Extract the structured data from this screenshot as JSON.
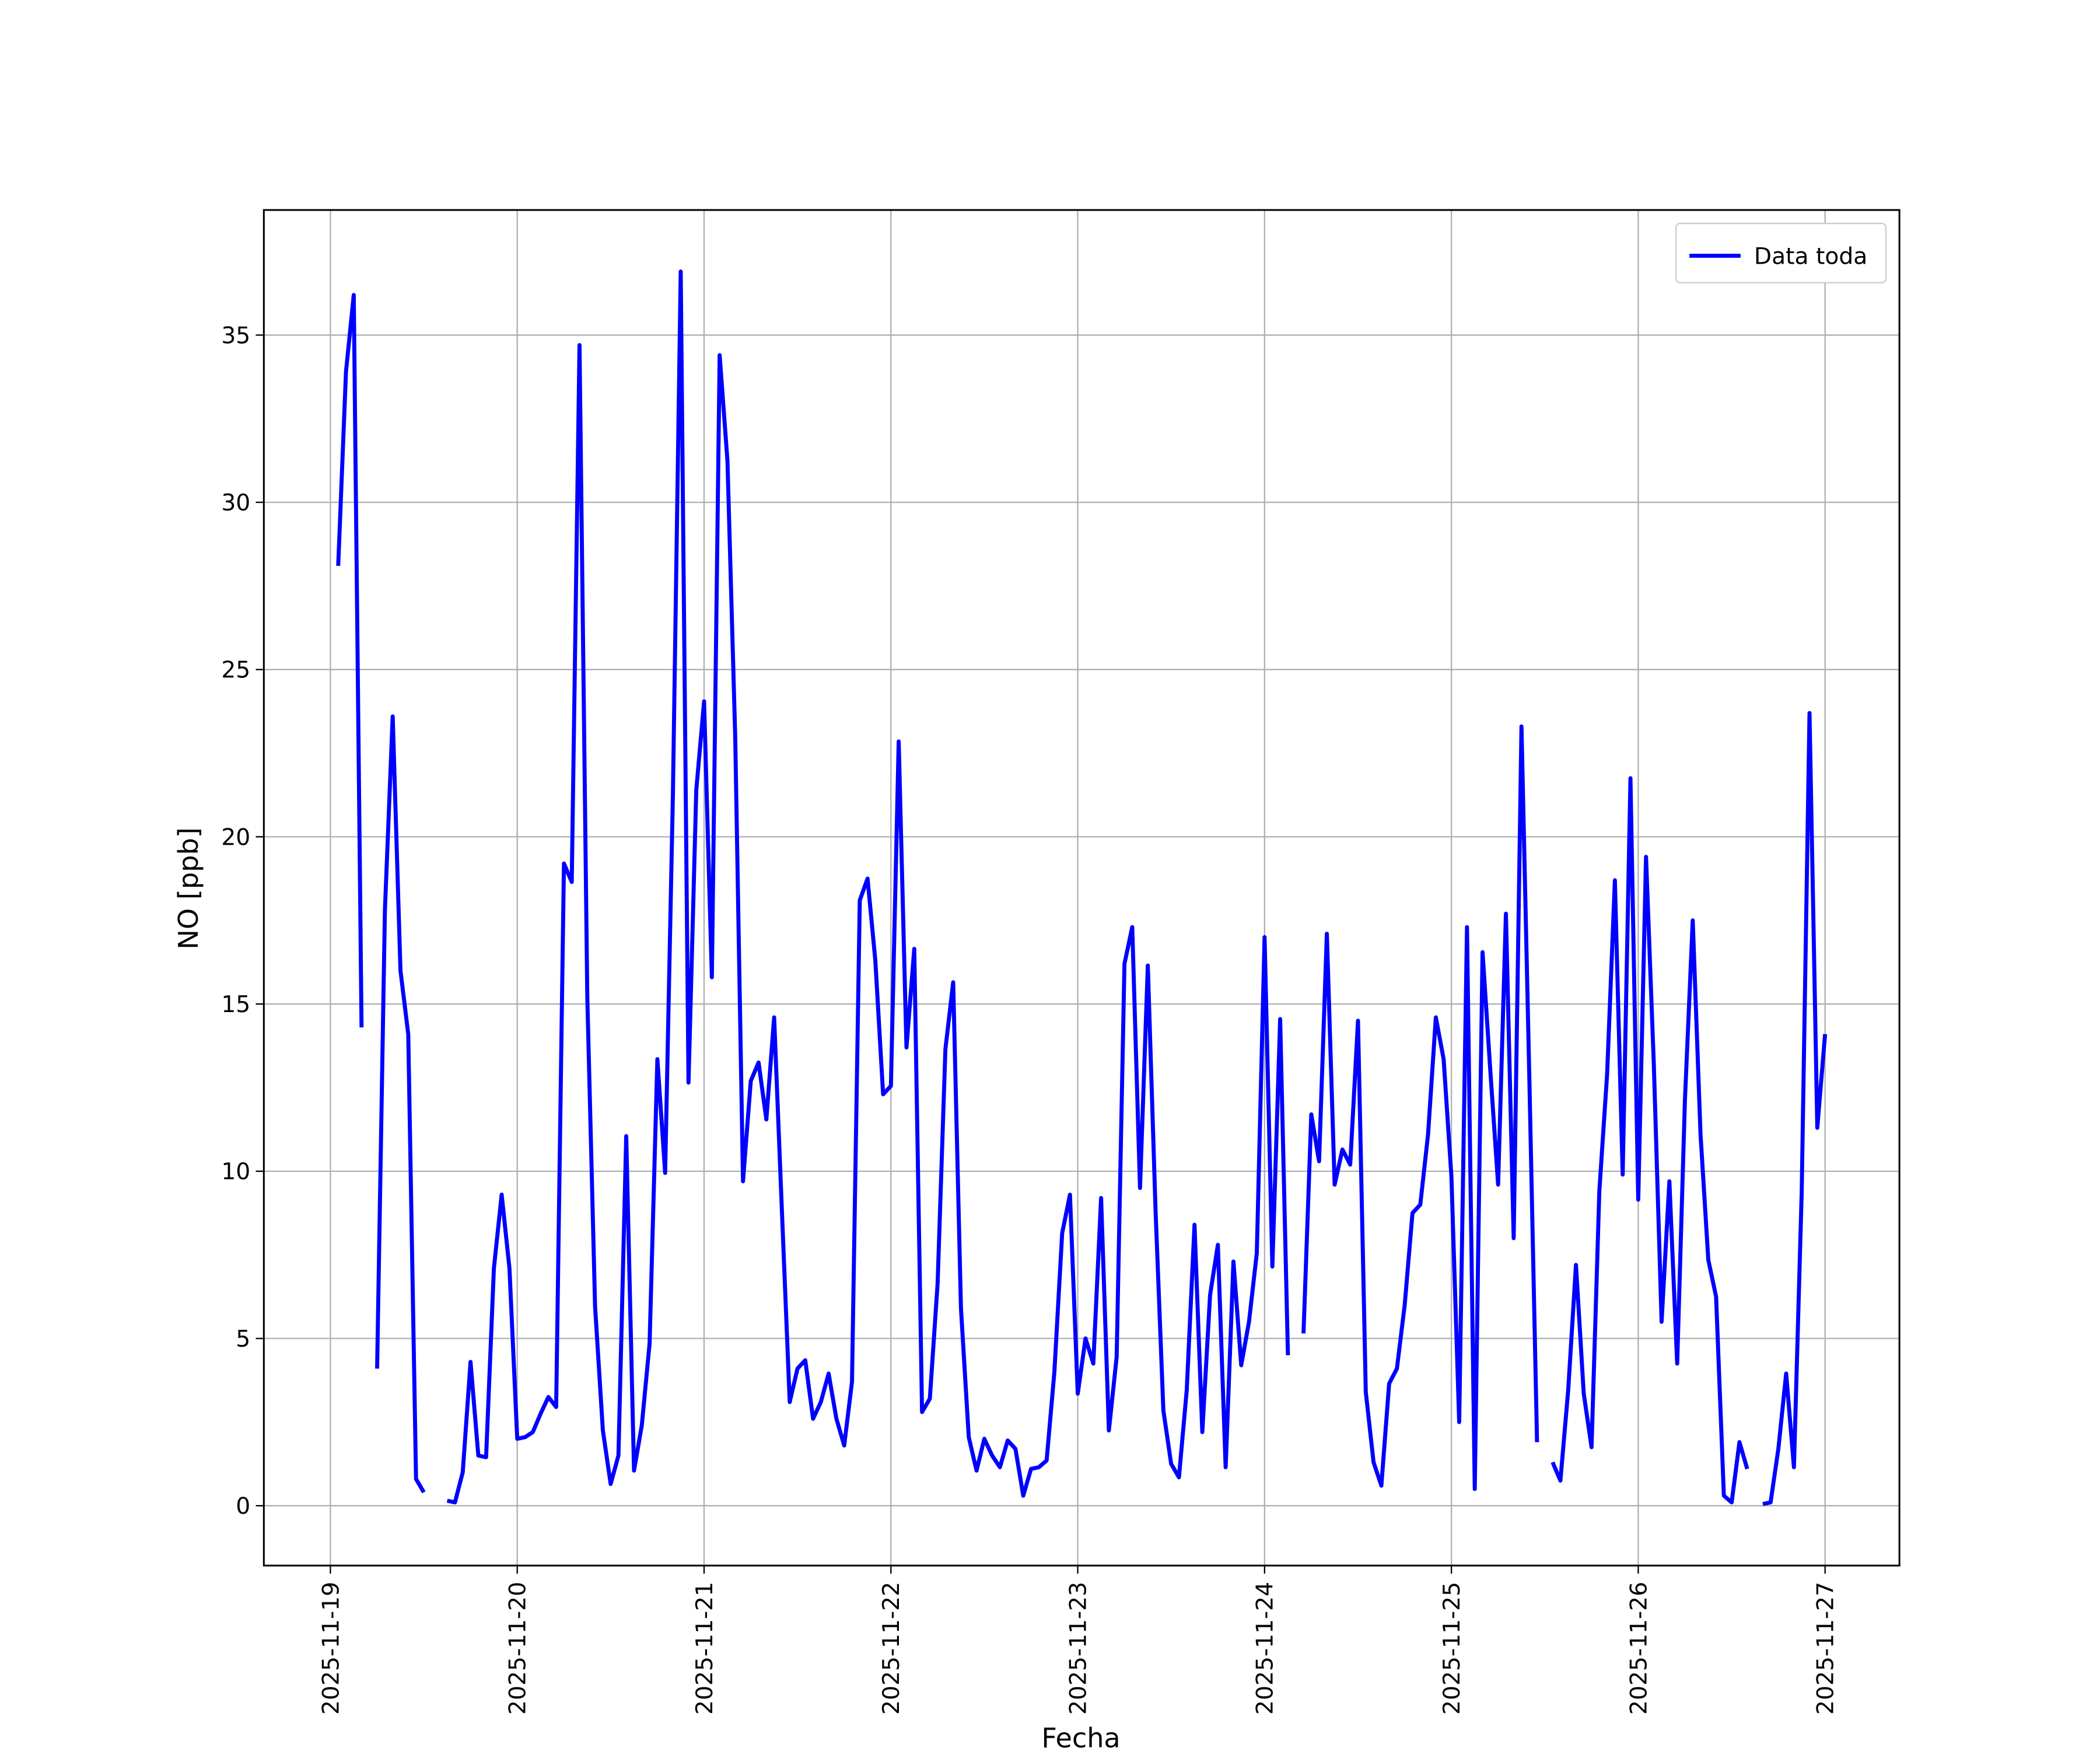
{
  "chart_data": {
    "type": "line",
    "xlabel": "Fecha",
    "ylabel": "NO [ppb]",
    "x": [
      "2025-11-19 01:00",
      "2025-11-19 02:00",
      "2025-11-19 03:00",
      "2025-11-19 04:00",
      "2025-11-19 05:00",
      "2025-11-19 06:00",
      "2025-11-19 07:00",
      "2025-11-19 08:00",
      "2025-11-19 09:00",
      "2025-11-19 10:00",
      "2025-11-19 11:00",
      "2025-11-19 12:00",
      "2025-11-19 13:00",
      "2025-11-19 14:00",
      "2025-11-19 15:00",
      "2025-11-19 16:00",
      "2025-11-19 17:00",
      "2025-11-19 18:00",
      "2025-11-19 19:00",
      "2025-11-19 20:00",
      "2025-11-19 21:00",
      "2025-11-19 22:00",
      "2025-11-19 23:00",
      "2025-11-20 00:00",
      "2025-11-20 01:00",
      "2025-11-20 02:00",
      "2025-11-20 03:00",
      "2025-11-20 04:00",
      "2025-11-20 05:00",
      "2025-11-20 06:00",
      "2025-11-20 07:00",
      "2025-11-20 08:00",
      "2025-11-20 09:00",
      "2025-11-20 10:00",
      "2025-11-20 11:00",
      "2025-11-20 12:00",
      "2025-11-20 13:00",
      "2025-11-20 14:00",
      "2025-11-20 15:00",
      "2025-11-20 16:00",
      "2025-11-20 17:00",
      "2025-11-20 18:00",
      "2025-11-20 19:00",
      "2025-11-20 20:00",
      "2025-11-20 21:00",
      "2025-11-20 22:00",
      "2025-11-20 23:00",
      "2025-11-21 00:00",
      "2025-11-21 01:00",
      "2025-11-21 02:00",
      "2025-11-21 03:00",
      "2025-11-21 04:00",
      "2025-11-21 05:00",
      "2025-11-21 06:00",
      "2025-11-21 07:00",
      "2025-11-21 08:00",
      "2025-11-21 09:00",
      "2025-11-21 10:00",
      "2025-11-21 11:00",
      "2025-11-21 12:00",
      "2025-11-21 13:00",
      "2025-11-21 14:00",
      "2025-11-21 15:00",
      "2025-11-21 16:00",
      "2025-11-21 17:00",
      "2025-11-21 18:00",
      "2025-11-21 19:00",
      "2025-11-21 20:00",
      "2025-11-21 21:00",
      "2025-11-21 22:00",
      "2025-11-21 23:00",
      "2025-11-22 00:00",
      "2025-11-22 01:00",
      "2025-11-22 02:00",
      "2025-11-22 03:00",
      "2025-11-22 04:00",
      "2025-11-22 05:00",
      "2025-11-22 06:00",
      "2025-11-22 07:00",
      "2025-11-22 08:00",
      "2025-11-22 09:00",
      "2025-11-22 10:00",
      "2025-11-22 11:00",
      "2025-11-22 12:00",
      "2025-11-22 13:00",
      "2025-11-22 14:00",
      "2025-11-22 15:00",
      "2025-11-22 16:00",
      "2025-11-22 17:00",
      "2025-11-22 18:00",
      "2025-11-22 19:00",
      "2025-11-22 20:00",
      "2025-11-22 21:00",
      "2025-11-22 22:00",
      "2025-11-22 23:00",
      "2025-11-23 00:00",
      "2025-11-23 01:00",
      "2025-11-23 02:00",
      "2025-11-23 03:00",
      "2025-11-23 04:00",
      "2025-11-23 05:00",
      "2025-11-23 06:00",
      "2025-11-23 07:00",
      "2025-11-23 08:00",
      "2025-11-23 09:00",
      "2025-11-23 10:00",
      "2025-11-23 11:00",
      "2025-11-23 12:00",
      "2025-11-23 13:00",
      "2025-11-23 14:00",
      "2025-11-23 15:00",
      "2025-11-23 16:00",
      "2025-11-23 17:00",
      "2025-11-23 18:00",
      "2025-11-23 19:00",
      "2025-11-23 20:00",
      "2025-11-23 21:00",
      "2025-11-23 22:00",
      "2025-11-23 23:00",
      "2025-11-24 00:00",
      "2025-11-24 01:00",
      "2025-11-24 02:00",
      "2025-11-24 03:00",
      "2025-11-24 04:00",
      "2025-11-24 05:00",
      "2025-11-24 06:00",
      "2025-11-24 07:00",
      "2025-11-24 08:00",
      "2025-11-24 09:00",
      "2025-11-24 10:00",
      "2025-11-24 11:00",
      "2025-11-24 12:00",
      "2025-11-24 13:00",
      "2025-11-24 14:00",
      "2025-11-24 15:00",
      "2025-11-24 16:00",
      "2025-11-24 17:00",
      "2025-11-24 18:00",
      "2025-11-24 19:00",
      "2025-11-24 20:00",
      "2025-11-24 21:00",
      "2025-11-24 22:00",
      "2025-11-24 23:00",
      "2025-11-25 00:00",
      "2025-11-25 01:00",
      "2025-11-25 02:00",
      "2025-11-25 03:00",
      "2025-11-25 04:00",
      "2025-11-25 05:00",
      "2025-11-25 06:00",
      "2025-11-25 07:00",
      "2025-11-25 08:00",
      "2025-11-25 09:00",
      "2025-11-25 10:00",
      "2025-11-25 11:00",
      "2025-11-25 12:00",
      "2025-11-25 13:00",
      "2025-11-25 14:00",
      "2025-11-25 15:00",
      "2025-11-25 16:00",
      "2025-11-25 17:00",
      "2025-11-25 18:00",
      "2025-11-25 19:00",
      "2025-11-25 20:00",
      "2025-11-25 21:00",
      "2025-11-25 22:00",
      "2025-11-25 23:00",
      "2025-11-26 00:00",
      "2025-11-26 01:00",
      "2025-11-26 02:00",
      "2025-11-26 03:00",
      "2025-11-26 04:00",
      "2025-11-26 05:00",
      "2025-11-26 06:00",
      "2025-11-26 07:00",
      "2025-11-26 08:00",
      "2025-11-26 09:00",
      "2025-11-26 10:00",
      "2025-11-26 11:00",
      "2025-11-26 12:00",
      "2025-11-26 13:00",
      "2025-11-26 14:00",
      "2025-11-26 15:00",
      "2025-11-26 16:00",
      "2025-11-26 17:00",
      "2025-11-26 18:00",
      "2025-11-26 19:00",
      "2025-11-26 20:00",
      "2025-11-26 21:00",
      "2025-11-26 22:00",
      "2025-11-26 23:00",
      "2025-11-27 00:00"
    ],
    "series": [
      {
        "name": "Data toda",
        "color": "#0000ff",
        "values": [
          28.1,
          33.9,
          36.2,
          14.3,
          null,
          4.1,
          17.8,
          23.6,
          16.0,
          14.1,
          0.8,
          0.4,
          null,
          null,
          0.15,
          0.1,
          1.0,
          4.3,
          1.5,
          1.45,
          7.1,
          9.3,
          7.1,
          2.0,
          2.05,
          2.2,
          2.75,
          3.25,
          2.95,
          19.2,
          18.65,
          34.7,
          15.2,
          5.95,
          2.25,
          0.65,
          1.5,
          11.05,
          1.05,
          2.4,
          4.85,
          13.35,
          9.95,
          21.3,
          36.9,
          12.65,
          21.4,
          24.05,
          15.8,
          34.4,
          31.25,
          23.0,
          9.7,
          12.7,
          13.25,
          11.55,
          14.6,
          8.8,
          3.1,
          4.1,
          4.35,
          2.6,
          3.1,
          3.95,
          2.6,
          1.8,
          3.7,
          18.1,
          18.75,
          16.3,
          12.3,
          12.55,
          22.85,
          13.7,
          16.65,
          2.8,
          3.2,
          6.65,
          13.65,
          15.65,
          5.9,
          2.05,
          1.05,
          2.0,
          1.5,
          1.15,
          1.95,
          1.7,
          0.3,
          1.1,
          1.15,
          1.35,
          4.0,
          8.15,
          9.3,
          3.35,
          5.0,
          4.25,
          9.2,
          2.25,
          4.45,
          16.2,
          17.3,
          9.5,
          16.15,
          8.8,
          2.85,
          1.25,
          0.85,
          3.45,
          8.4,
          2.2,
          6.3,
          7.8,
          1.15,
          7.3,
          4.2,
          5.5,
          7.55,
          17.0,
          7.15,
          14.55,
          4.5,
          null,
          5.15,
          11.7,
          10.3,
          17.1,
          9.6,
          10.65,
          10.2,
          14.5,
          3.4,
          1.3,
          0.6,
          3.65,
          4.1,
          6.0,
          8.75,
          9.0,
          11.1,
          14.6,
          13.35,
          9.85,
          2.5,
          17.3,
          0.5,
          16.55,
          13.0,
          9.6,
          17.7,
          8.0,
          23.3,
          12.9,
          1.9,
          null,
          1.3,
          0.75,
          3.45,
          7.2,
          3.35,
          1.75,
          9.4,
          12.9,
          18.7,
          9.9,
          21.75,
          9.15,
          19.4,
          13.2,
          5.5,
          9.7,
          4.25,
          12.15,
          17.5,
          11.1,
          7.35,
          6.25,
          0.3,
          0.1,
          1.9,
          1.1,
          null,
          0.05,
          0.1,
          1.7,
          3.95,
          1.15,
          9.4,
          23.7,
          11.3,
          14.1
        ]
      }
    ],
    "xlim": [
      "2025-11-18 15:27",
      "2025-11-27 09:33"
    ],
    "xticks": [
      "2025-11-19",
      "2025-11-20",
      "2025-11-21",
      "2025-11-22",
      "2025-11-23",
      "2025-11-24",
      "2025-11-25",
      "2025-11-26",
      "2025-11-27"
    ],
    "ylim": [
      -1.79,
      38.74
    ],
    "yticks": [
      0,
      5,
      10,
      15,
      20,
      25,
      30,
      35
    ],
    "grid": true,
    "legend": "upper right"
  }
}
